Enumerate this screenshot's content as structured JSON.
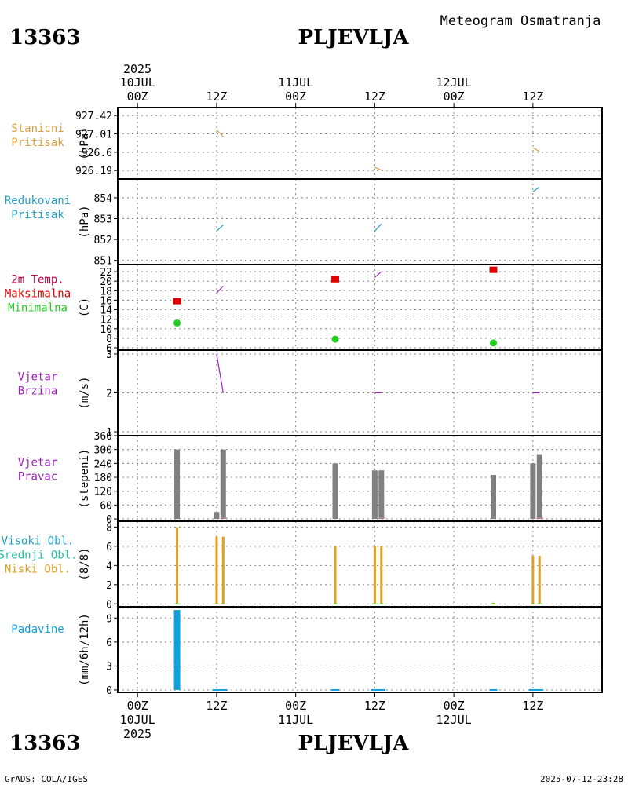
{
  "header": {
    "station_id": "13363",
    "station_name": "PLJEVLJA",
    "product_title": "Meteogram Osmatranja"
  },
  "footer": {
    "station_id": "13363",
    "station_name": "PLJEVLJA",
    "credit": "GrADS: COLA/IGES",
    "timestamp": "2025-07-12-23:28"
  },
  "colors": {
    "pressure": "#e0a040",
    "reduced_pressure": "#20a0c8",
    "tmax": "#e00000",
    "tmin": "#20d020",
    "wind_speed": "#a020c0",
    "wind_dir_bar": "#808080",
    "cloud_bar": "#e0a020",
    "cloud_label_high": "#20a0c8",
    "cloud_label_mid": "#20c0a0",
    "precip": "#10a0e0"
  },
  "time_axis": {
    "year": "2025",
    "ticks": [
      {
        "hour": 0,
        "label": "00Z",
        "date": "10JUL"
      },
      {
        "hour": 12,
        "label": "12Z",
        "date": ""
      },
      {
        "hour": 24,
        "label": "00Z",
        "date": "11JUL"
      },
      {
        "hour": 36,
        "label": "12Z",
        "date": ""
      },
      {
        "hour": 48,
        "label": "00Z",
        "date": "12JUL"
      },
      {
        "hour": 60,
        "label": "12Z",
        "date": ""
      }
    ],
    "range_hours": [
      -3,
      70.5
    ],
    "minor_grid_hours": [
      6,
      18,
      30,
      42,
      54,
      66
    ]
  },
  "chart_data": [
    {
      "id": "station-pressure",
      "type": "line",
      "title_lines": [
        "Stanicni",
        "Pritisak"
      ],
      "ylabel": "(hPa)",
      "ylim": [
        926.0,
        927.6
      ],
      "yticks": [
        926.19,
        926.6,
        927.01,
        927.42
      ],
      "ytick_labels": [
        "926.19",
        "926.6",
        "927.01",
        "927.42"
      ],
      "segments": [
        {
          "x": [
            12,
            13
          ],
          "y": [
            927.1,
            926.95
          ]
        },
        {
          "x": [
            36,
            37
          ],
          "y": [
            926.26,
            926.2
          ]
        },
        {
          "x": [
            60,
            61
          ],
          "y": [
            926.7,
            926.62
          ]
        }
      ]
    },
    {
      "id": "reduced-pressure",
      "type": "line",
      "title_lines": [
        "Redukovani",
        "Pritisak"
      ],
      "ylabel": "(hPa)",
      "ylim": [
        850.8,
        854.9
      ],
      "yticks": [
        851,
        852,
        853,
        854
      ],
      "ytick_labels": [
        "851",
        "852",
        "853",
        "854"
      ],
      "segments": [
        {
          "x": [
            12,
            13
          ],
          "y": [
            852.4,
            852.7
          ]
        },
        {
          "x": [
            36,
            37
          ],
          "y": [
            852.4,
            852.75
          ]
        },
        {
          "x": [
            60,
            61
          ],
          "y": [
            854.3,
            854.5
          ]
        }
      ]
    },
    {
      "id": "temperature",
      "type": "scatter",
      "title_lines": [
        "2m Temp.",
        "Maksimalna",
        "Minimalna"
      ],
      "ylabel": "(C)",
      "ylim": [
        5.5,
        23.5
      ],
      "yticks": [
        6,
        8,
        10,
        12,
        14,
        16,
        18,
        20,
        22
      ],
      "ytick_labels": [
        "6",
        "8",
        "10",
        "12",
        "14",
        "16",
        "18",
        "20",
        "22"
      ],
      "segments": [
        {
          "x": [
            12,
            13
          ],
          "y": [
            17.5,
            19.0
          ]
        },
        {
          "x": [
            36,
            37
          ],
          "y": [
            20.8,
            22.0
          ]
        }
      ],
      "tmax": {
        "x": [
          6,
          30,
          54
        ],
        "y": [
          15.8,
          20.4,
          22.4
        ]
      },
      "tmin": {
        "x": [
          6,
          30,
          54
        ],
        "y": [
          11.2,
          7.8,
          7.0
        ]
      }
    },
    {
      "id": "wind-speed",
      "type": "line",
      "title_lines": [
        "Vjetar",
        "Brzina"
      ],
      "ylabel": "(m/s)",
      "ylim": [
        0.9,
        3.1
      ],
      "yticks": [
        1,
        2,
        3
      ],
      "ytick_labels": [
        "1",
        "2",
        "3"
      ],
      "segments": [
        {
          "x": [
            12,
            13
          ],
          "y": [
            3.0,
            2.0
          ]
        },
        {
          "x": [
            36,
            37
          ],
          "y": [
            2.0,
            2.0
          ]
        },
        {
          "x": [
            60,
            61
          ],
          "y": [
            2.0,
            2.0
          ]
        }
      ]
    },
    {
      "id": "wind-direction",
      "type": "bar",
      "title_lines": [
        "Vjetar",
        "Pravac"
      ],
      "ylabel": "(stepeni)",
      "ylim": [
        -10,
        360
      ],
      "yticks": [
        0,
        60,
        120,
        180,
        240,
        300,
        360
      ],
      "ytick_labels": [
        "0",
        "60",
        "120",
        "180",
        "240",
        "300",
        "360"
      ],
      "bars": {
        "x": [
          6,
          12,
          13,
          30,
          36,
          37,
          54,
          60,
          61
        ],
        "y": [
          300,
          30,
          300,
          240,
          210,
          210,
          190,
          240,
          280
        ]
      },
      "markers": {
        "x": [
          13,
          37,
          61
        ],
        "y": [
          5,
          5,
          5
        ]
      }
    },
    {
      "id": "cloud-cover",
      "type": "bar",
      "title_lines": [
        "Visoki Obl.",
        "Srednji Obl.",
        "Niski Obl."
      ],
      "ylabel": "(8/8)",
      "ylim": [
        -0.3,
        8.6
      ],
      "yticks": [
        0,
        2,
        4,
        6,
        8
      ],
      "ytick_labels": [
        "0",
        "2",
        "4",
        "6",
        "8"
      ],
      "bars": {
        "x": [
          6,
          12,
          13,
          30,
          36,
          37,
          54,
          60,
          61
        ],
        "y": [
          8,
          7,
          7,
          6,
          6,
          6,
          0,
          5,
          5
        ]
      }
    },
    {
      "id": "precipitation",
      "type": "bar",
      "title_lines": [
        "Padavine"
      ],
      "ylabel": "(mm/6h/12h)",
      "ylim": [
        -0.3,
        10.4
      ],
      "yticks": [
        0,
        3,
        6,
        9
      ],
      "ytick_labels": [
        "0",
        "3",
        "6",
        "9"
      ],
      "bars": {
        "x": [
          6,
          12,
          13,
          30,
          36,
          37,
          54,
          60,
          61
        ],
        "y": [
          10,
          0.1,
          0.1,
          0.1,
          0.1,
          0.1,
          0.1,
          0.1,
          0.1
        ]
      }
    }
  ]
}
